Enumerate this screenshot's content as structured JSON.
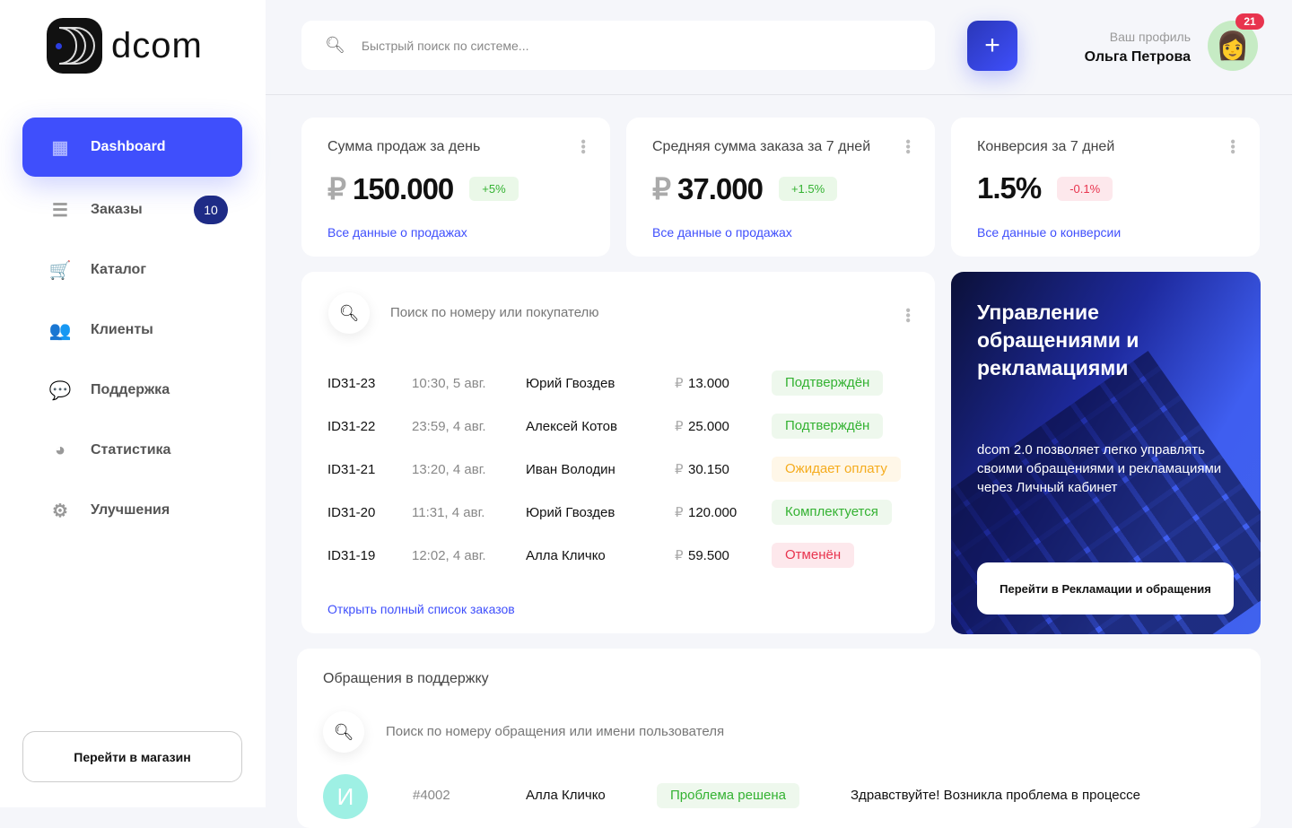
{
  "brand": {
    "name": "dcom"
  },
  "sidebar": {
    "items": [
      {
        "label": "Dashboard",
        "icon": "dashboard-icon",
        "active": true
      },
      {
        "label": "Заказы",
        "icon": "list-icon",
        "badge": "10"
      },
      {
        "label": "Каталог",
        "icon": "cart-icon"
      },
      {
        "label": "Клиенты",
        "icon": "users-icon"
      },
      {
        "label": "Поддержка",
        "icon": "chat-icon"
      },
      {
        "label": "Статистика",
        "icon": "pie-chart-icon"
      },
      {
        "label": "Улучшения",
        "icon": "gear-icon"
      }
    ],
    "shop_button": "Перейти в магазин"
  },
  "header": {
    "search_placeholder": "Быстрый поиск по системе...",
    "profile_label": "Ваш профиль",
    "profile_name": "Ольга Петрова",
    "notifications": "21"
  },
  "stats": [
    {
      "title": "Сумма продаж за день",
      "currency": "₽",
      "value": "150.000",
      "change": "+5%",
      "link": "Все данные о продажах",
      "trend": "up"
    },
    {
      "title": "Средняя сумма заказа за 7 дней",
      "currency": "₽",
      "value": "37.000",
      "change": "+1.5%",
      "link": "Все данные о продажах",
      "trend": "up"
    },
    {
      "title": "Конверсия за 7 дней",
      "currency": "",
      "value": "1.5%",
      "change": "-0.1%",
      "link": "Все данные о конверсии",
      "trend": "down"
    }
  ],
  "orders": {
    "search_placeholder": "Поиск по номеру или покупателю",
    "rows": [
      {
        "id": "ID31-23",
        "time": "10:30, 5 авг.",
        "customer": "Юрий Гвоздев",
        "amount": "13.000",
        "status": "Подтверждён",
        "kind": "ok"
      },
      {
        "id": "ID31-22",
        "time": "23:59, 4 авг.",
        "customer": "Алексей Котов",
        "amount": "25.000",
        "status": "Подтверждён",
        "kind": "ok"
      },
      {
        "id": "ID31-21",
        "time": "13:20, 4 авг.",
        "customer": "Иван Володин",
        "amount": "30.150",
        "status": "Ожидает оплату",
        "kind": "wait"
      },
      {
        "id": "ID31-20",
        "time": "11:31, 4 авг.",
        "customer": "Юрий Гвоздев",
        "amount": "120.000",
        "status": "Комплектуется",
        "kind": "ok"
      },
      {
        "id": "ID31-19",
        "time": "12:02, 4 авг.",
        "customer": "Алла Кличко",
        "amount": "59.500",
        "status": "Отменён",
        "kind": "cancel"
      }
    ],
    "currency": "₽",
    "link": "Открыть полный список заказов"
  },
  "promo": {
    "title": "Управление обращениями и рекламациями",
    "text": "dcom 2.0 позволяет легко управлять своими обращениями и рекламациями через Личный кабинет",
    "button": "Перейти в Рекламации и обращения"
  },
  "support": {
    "title": "Обращения в поддержку",
    "search_placeholder": "Поиск по номеру обращения или имени пользователя",
    "rows": [
      {
        "initial": "И",
        "number": "#4002",
        "name": "Алла Кличко",
        "status": "Проблема решена",
        "message": "Здравствуйте! Возникла проблема в процессе"
      }
    ]
  },
  "colors": {
    "accent": "#3f4ffc",
    "badge": "#1e2b86",
    "success": "#34b232",
    "warning": "#f5ac1e",
    "danger": "#e8344e"
  }
}
